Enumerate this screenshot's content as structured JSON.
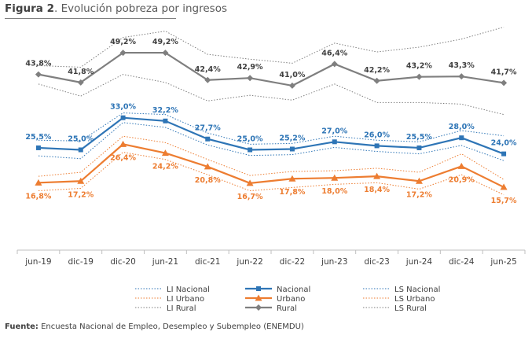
{
  "figure": {
    "label": "Figura 2",
    "caption": ". Evolución pobreza por ingresos",
    "source_label": "Fuente:",
    "source_text": " Encuesta Nacional de Empleo, Desempleo y Subempleo (ENEMDU)"
  },
  "colors": {
    "nacional": "#2e75b6",
    "urbano": "#ed7d31",
    "rural": "#7f7f7f",
    "axis": "#bfbfbf"
  },
  "chart_data": {
    "type": "line",
    "categories": [
      "jun-19",
      "dic-19",
      "dic-20",
      "jun-21",
      "dic-21",
      "jun-22",
      "dic-22",
      "jun-23",
      "dic-23",
      "jun-24",
      "dic-24",
      "jun-25"
    ],
    "ylim": [
      0,
      60
    ],
    "grid": false,
    "legend_position": "bottom",
    "series": [
      {
        "name": "LI Nacional",
        "style": "dotted",
        "color": "#2e75b6",
        "values": [
          23.5,
          22.8,
          31.8,
          30.6,
          26.2,
          23.6,
          23.8,
          25.6,
          24.6,
          24.0,
          26.1,
          22.3
        ]
      },
      {
        "name": "Nacional",
        "style": "solid",
        "marker": "square",
        "color": "#2e75b6",
        "labeled": true,
        "values": [
          25.5,
          25.0,
          33.0,
          32.2,
          27.7,
          25.0,
          25.2,
          27.0,
          26.0,
          25.5,
          28.0,
          24.0
        ]
      },
      {
        "name": "LS Nacional",
        "style": "dotted",
        "color": "#2e75b6",
        "values": [
          27.4,
          27.2,
          34.2,
          33.8,
          29.2,
          26.4,
          26.6,
          28.4,
          27.4,
          27.0,
          29.8,
          28.5
        ]
      },
      {
        "name": "LI Urbano",
        "style": "dotted",
        "color": "#ed7d31",
        "values": [
          14.8,
          15.4,
          24.4,
          22.6,
          18.8,
          14.8,
          15.6,
          16.4,
          16.8,
          15.2,
          18.8,
          13.8
        ]
      },
      {
        "name": "Urbano",
        "style": "solid",
        "marker": "triangle",
        "color": "#ed7d31",
        "labeled": true,
        "values": [
          16.8,
          17.2,
          26.4,
          24.2,
          20.8,
          16.7,
          17.8,
          18.0,
          18.4,
          17.2,
          20.9,
          15.7
        ]
      },
      {
        "name": "LS Urbano",
        "style": "dotted",
        "color": "#ed7d31",
        "values": [
          18.4,
          19.4,
          28.4,
          26.8,
          22.6,
          18.6,
          19.6,
          19.8,
          20.4,
          19.4,
          24.0,
          17.6
        ]
      },
      {
        "name": "LI Rural",
        "style": "dotted",
        "color": "#7f7f7f",
        "values": [
          41.4,
          38.4,
          43.8,
          41.8,
          37.2,
          38.6,
          37.4,
          41.4,
          36.8,
          36.8,
          36.4,
          33.8
        ]
      },
      {
        "name": "Rural",
        "style": "solid",
        "marker": "diamond",
        "color": "#7f7f7f",
        "labeled": true,
        "values": [
          43.8,
          41.8,
          49.2,
          49.2,
          42.4,
          42.9,
          41.0,
          46.4,
          42.2,
          43.2,
          43.3,
          41.7
        ]
      },
      {
        "name": "LS Rural",
        "style": "dotted",
        "color": "#7f7f7f",
        "values": [
          46.0,
          45.6,
          53.0,
          54.6,
          48.8,
          47.6,
          46.6,
          51.6,
          49.4,
          50.6,
          52.6,
          55.6
        ]
      }
    ],
    "data_labels": {
      "Nacional": [
        "25,5%",
        "25,0%",
        "33,0%",
        "32,2%",
        "27,7%",
        "25,0%",
        "25,2%",
        "27,0%",
        "26,0%",
        "25,5%",
        "28,0%",
        "24,0%"
      ],
      "Urbano": [
        "16,8%",
        "17,2%",
        "26,4%",
        "24,2%",
        "20,8%",
        "16,7%",
        "17,8%",
        "18,0%",
        "18,4%",
        "17,2%",
        "20,9%",
        "15,7%"
      ],
      "Rural": [
        "43,8%",
        "41,8%",
        "49,2%",
        "49,2%",
        "42,4%",
        "42,9%",
        "41,0%",
        "46,4%",
        "42,2%",
        "43,2%",
        "43,3%",
        "41,7%"
      ]
    }
  }
}
